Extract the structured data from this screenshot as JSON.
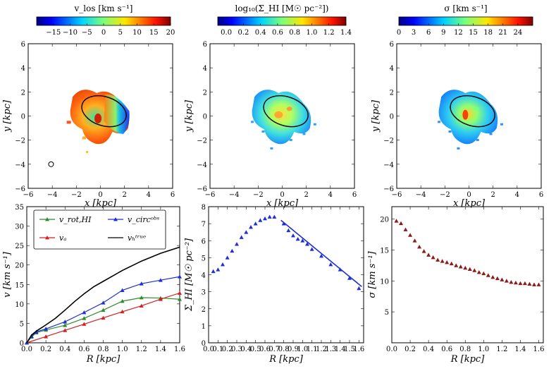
{
  "chart_data": [
    {
      "type": "heatmap",
      "panel": "velocity map",
      "colorbar_title": "v_los [km s^-1]",
      "colorbar_ticks": [
        "-15",
        "-10",
        "-5",
        "0",
        "5",
        "10",
        "15",
        "20"
      ],
      "colorbar_range": [
        -20,
        20
      ],
      "xlabel": "x [kpc]",
      "ylabel": "y [kpc]",
      "xlim": [
        -6,
        6
      ],
      "ylim": [
        -6,
        6
      ],
      "xticks": [
        "-6",
        "-4",
        "-2",
        "0",
        "2",
        "4",
        "6"
      ],
      "yticks": [
        "-6",
        "-4",
        "-2",
        "0",
        "2",
        "4",
        "6"
      ],
      "beam_center": [
        -4.1,
        -4.0
      ]
    },
    {
      "type": "heatmap",
      "panel": "HI surface density map",
      "colorbar_title": "log10(Σ_HI [M☉ pc^-2])",
      "colorbar_ticks": [
        "0.0",
        "0.2",
        "0.4",
        "0.6",
        "0.8",
        "1.0",
        "1.2",
        "1.4"
      ],
      "colorbar_range": [
        -0.1,
        1.4
      ],
      "xlabel": "x [kpc]",
      "ylabel": "y [kpc]",
      "xlim": [
        -6,
        6
      ],
      "ylim": [
        -6,
        6
      ],
      "xticks": [
        "-6",
        "-4",
        "-2",
        "0",
        "2",
        "4",
        "6"
      ],
      "yticks": [
        "-6",
        "-4",
        "-2",
        "0",
        "2",
        "4",
        "6"
      ]
    },
    {
      "type": "heatmap",
      "panel": "velocity dispersion map",
      "colorbar_title": "σ [km s^-1]",
      "colorbar_ticks": [
        "0",
        "3",
        "6",
        "9",
        "12",
        "15",
        "18",
        "21",
        "24"
      ],
      "colorbar_range": [
        0,
        27
      ],
      "xlabel": "x [kpc]",
      "ylabel": "y [kpc]",
      "xlim": [
        -6,
        6
      ],
      "ylim": [
        -6,
        6
      ],
      "xticks": [
        "-6",
        "-4",
        "-2",
        "0",
        "2",
        "4",
        "6"
      ],
      "yticks": [
        "-6",
        "-4",
        "-2",
        "0",
        "2",
        "4",
        "6"
      ]
    },
    {
      "type": "line",
      "panel": "rotation curves",
      "xlabel": "R [kpc]",
      "ylabel": "v [km s^-1]",
      "xlim": [
        0,
        1.6
      ],
      "ylim": [
        0,
        35
      ],
      "xticks": [
        "0.0",
        "0.2",
        "0.4",
        "0.6",
        "0.8",
        "1.0",
        "1.2",
        "1.4",
        "1.6"
      ],
      "yticks": [
        "0",
        "5",
        "10",
        "15",
        "20",
        "25",
        "30",
        "35"
      ],
      "legend_position": "top",
      "series": [
        {
          "name": "v_rot,HI",
          "color": "#2e8b2e",
          "marker": "triangle",
          "x": [
            0,
            0.05,
            0.1,
            0.2,
            0.4,
            0.6,
            0.8,
            1.0,
            1.2,
            1.4,
            1.6
          ],
          "y": [
            0,
            1.5,
            2.6,
            3.3,
            4.5,
            6.3,
            8.4,
            10.7,
            11.6,
            11.5,
            11.2
          ]
        },
        {
          "name": "v_a",
          "color": "#d42020",
          "marker": "triangle",
          "x": [
            0,
            0.2,
            0.4,
            0.6,
            0.8,
            1.0,
            1.2,
            1.4,
            1.6
          ],
          "y": [
            0,
            1.6,
            3.2,
            4.8,
            6.4,
            8.0,
            9.5,
            11.2,
            12.8
          ]
        },
        {
          "name": "v_circ^obs",
          "color": "#1f2fd6",
          "marker": "triangle",
          "x": [
            0,
            0.05,
            0.1,
            0.2,
            0.4,
            0.6,
            0.8,
            1.0,
            1.2,
            1.4,
            1.6
          ],
          "y": [
            0,
            1.7,
            2.8,
            3.6,
            5.4,
            7.8,
            10.3,
            13.5,
            15.2,
            16.1,
            17.0
          ]
        },
        {
          "name": "v_h^true",
          "color": "#000000",
          "marker": "none",
          "x": [
            0,
            0.05,
            0.1,
            0.15,
            0.2,
            0.3,
            0.4,
            0.5,
            0.6,
            0.7,
            0.8,
            0.9,
            1.0,
            1.2,
            1.4,
            1.6
          ],
          "y": [
            0,
            2.0,
            3.0,
            3.8,
            4.6,
            6.3,
            8.4,
            10.6,
            12.6,
            14.4,
            15.8,
            17.2,
            18.6,
            21.0,
            23.0,
            24.6
          ]
        }
      ]
    },
    {
      "type": "scatter",
      "panel": "HI surface density profile",
      "xlabel": "R [kpc]",
      "ylabel": "Σ_HI [M☉ pc^-2]",
      "xlim": [
        0,
        1.65
      ],
      "ylim": [
        0,
        8
      ],
      "xticks": [
        "0.0",
        "0.1",
        "0.2",
        "0.3",
        "0.4",
        "0.5",
        "0.6",
        "0.7",
        "0.8",
        "0.9",
        "1.0",
        "1.1",
        "1.2",
        "1.3",
        "1.4",
        "1.5",
        "1.6"
      ],
      "yticks": [
        "0",
        "1",
        "2",
        "3",
        "4",
        "5",
        "6",
        "7",
        "8"
      ],
      "series": [
        {
          "name": "data",
          "color": "#1f2fd6",
          "marker": "triangle",
          "x": [
            0.05,
            0.1,
            0.15,
            0.2,
            0.25,
            0.3,
            0.35,
            0.4,
            0.45,
            0.5,
            0.55,
            0.6,
            0.65,
            0.7,
            0.8,
            0.85,
            0.9,
            0.95,
            1.0,
            1.05,
            1.1,
            1.2,
            1.3,
            1.4,
            1.5,
            1.6
          ],
          "y": [
            4.2,
            4.3,
            4.6,
            5.0,
            5.4,
            5.8,
            6.2,
            6.5,
            6.8,
            7.0,
            7.2,
            7.3,
            7.4,
            7.4,
            7.0,
            6.6,
            6.3,
            6.1,
            6.0,
            5.8,
            5.5,
            5.1,
            4.6,
            4.3,
            3.8,
            3.2
          ]
        },
        {
          "name": "fit",
          "color": "#1f2fd6",
          "marker": "none",
          "x": [
            0.77,
            1.63
          ],
          "y": [
            7.2,
            3.3
          ]
        }
      ]
    },
    {
      "type": "scatter",
      "panel": "velocity dispersion profile",
      "xlabel": "R [kpc]",
      "ylabel": "σ [km s^-1]",
      "xlim": [
        0,
        1.65
      ],
      "ylim": [
        0,
        22
      ],
      "xticks": [
        "0.0",
        "0.2",
        "0.4",
        "0.6",
        "0.8",
        "1.0",
        "1.2",
        "1.4",
        "1.6"
      ],
      "yticks": [
        "5",
        "10",
        "15",
        "20"
      ],
      "series": [
        {
          "name": "data",
          "color": "#8b1a1a",
          "marker": "triangle",
          "x": [
            0.05,
            0.1,
            0.15,
            0.2,
            0.25,
            0.3,
            0.35,
            0.4,
            0.45,
            0.5,
            0.55,
            0.6,
            0.65,
            0.7,
            0.75,
            0.8,
            0.85,
            0.9,
            0.95,
            1.0,
            1.05,
            1.1,
            1.15,
            1.2,
            1.25,
            1.3,
            1.35,
            1.4,
            1.45,
            1.5,
            1.55,
            1.6
          ],
          "y": [
            19.7,
            19.3,
            18.3,
            17.4,
            16.5,
            15.5,
            14.8,
            14.2,
            13.8,
            13.4,
            13.2,
            13.0,
            12.8,
            12.5,
            12.3,
            12.1,
            11.9,
            11.7,
            11.4,
            11.2,
            10.9,
            10.6,
            10.4,
            10.2,
            10.0,
            9.8,
            9.7,
            9.6,
            9.6,
            9.5,
            9.4,
            9.4
          ]
        }
      ]
    }
  ]
}
